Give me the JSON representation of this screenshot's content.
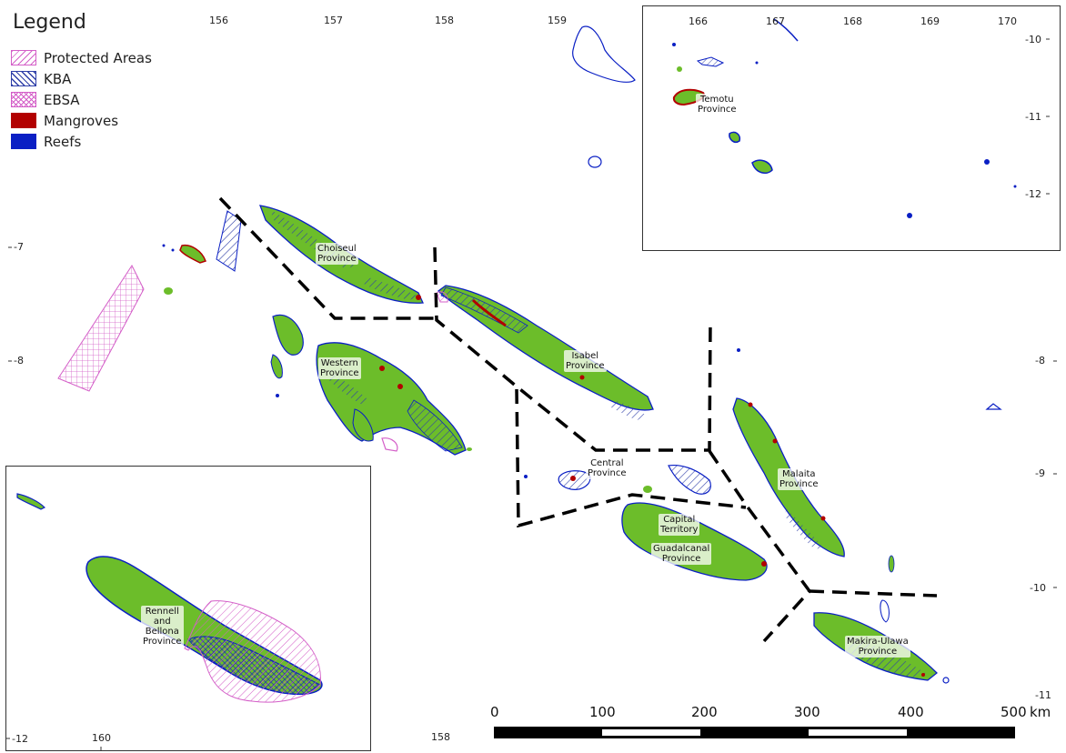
{
  "legend": {
    "title": "Legend",
    "items": [
      {
        "label": "Protected Areas",
        "color": "#d45fc8",
        "pattern": "hatch-pink"
      },
      {
        "label": "KBA",
        "color": "#2f3fa8",
        "pattern": "hatch-blue"
      },
      {
        "label": "EBSA",
        "color": "#d45fc8",
        "pattern": "cross-pink"
      },
      {
        "label": "Mangroves",
        "color": "#b20000",
        "pattern": "solid"
      },
      {
        "label": "Reefs",
        "color": "#0a1fc4",
        "pattern": "solid"
      }
    ]
  },
  "main_map": {
    "top_ticks": [
      "156",
      "157",
      "158",
      "159"
    ],
    "left_ticks": [
      "-7",
      "-8"
    ],
    "right_ticks": [
      "-8",
      "-9",
      "-10"
    ],
    "bottom_right_tick": "-11",
    "provinces": {
      "choiseul": [
        "Choiseul",
        "Province"
      ],
      "western": [
        "Western",
        "Province"
      ],
      "isabel": [
        "Isabel",
        "Province"
      ],
      "central": [
        "Central",
        "Province"
      ],
      "malaita": [
        "Malaita",
        "Province"
      ],
      "capital": [
        "Capital",
        "Territory"
      ],
      "guadalcanal": [
        "Guadalcanal",
        "Province"
      ],
      "makira": [
        "Makira-Ulawa",
        "Province"
      ]
    }
  },
  "inset_temotu": {
    "top_ticks": [
      "166",
      "167",
      "168",
      "169",
      "170"
    ],
    "right_ticks": [
      "-10",
      "-11",
      "-12"
    ],
    "province": [
      "Temotu",
      "Province"
    ]
  },
  "inset_rennell": {
    "left_tick": "-12",
    "bottom_tick": "160",
    "outer_bottom_tick": "158",
    "province": [
      "Rennell",
      "and",
      "Bellona",
      "Province"
    ]
  },
  "scale_bar": {
    "labels": [
      "0",
      "100",
      "200",
      "300",
      "400",
      "500"
    ],
    "unit": "km"
  },
  "colors": {
    "land": "#6cbd2a",
    "reef": "#0a1fc4",
    "mangrove": "#b20000",
    "kba": "#2f3fa8",
    "protected": "#d45fc8",
    "boundary": "#000000"
  }
}
